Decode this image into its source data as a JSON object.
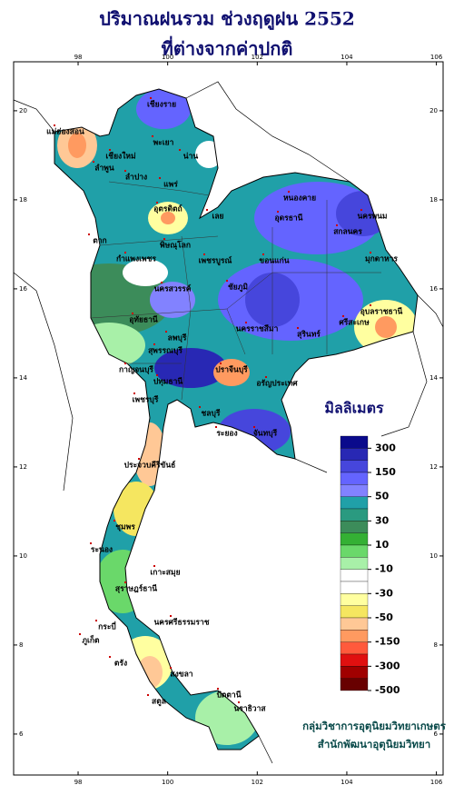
{
  "map": {
    "title": "ปริมาณฝนรวม ช่วงฤดูฝน 2552",
    "subtitle": "ที่ต่างจากค่าปกติ",
    "xlim": [
      96.56,
      106.15
    ],
    "ylim": [
      5.08,
      21.1
    ],
    "lon_ticks": [
      98,
      100,
      102,
      104,
      106
    ],
    "lat_ticks": [
      6,
      8,
      10,
      12,
      14,
      16,
      18,
      20
    ],
    "legend_title": "มิลลิเมตร",
    "legend_labels": [
      300,
      150,
      50,
      30,
      10,
      -10,
      -30,
      -50,
      -150,
      -300,
      -500
    ],
    "legend_colors": [
      "#0a0a8c",
      "#2828b4",
      "#4646dc",
      "#6464ff",
      "#8282ff",
      "#20a0a8",
      "#2a9a80",
      "#3c8c5a",
      "#34b034",
      "#6ad86a",
      "#a8f0a8",
      "#ffffff",
      "#ffffff",
      "#ffffa0",
      "#f5e660",
      "#ffc896",
      "#ff9a60",
      "#ff5a3c",
      "#e01010",
      "#a00000",
      "#680000"
    ],
    "places": [
      "เชียงราย",
      "แม่ฮ่องสอน",
      "เชียงใหม่",
      "ลำพูน",
      "ลำปาง",
      "พะเยา",
      "น่าน",
      "แพร่",
      "ตาก",
      "อุตรดิตถ์",
      "พิษณุโลก",
      "กำแพงเพชร",
      "เพชรบูรณ์",
      "เลย",
      "หนองคาย",
      "อุดรธานี",
      "นครพนม",
      "สกลนคร",
      "มุกดาหาร",
      "ขอนแก่น",
      "ชัยภูมิ",
      "นครสวรรค์",
      "อุทัยธานี",
      "ลพบุรี",
      "สุพรรณบุรี",
      "กาญจนบุรี",
      "ปทุมธานี",
      "นครราชสีมา",
      "สุรินทร์",
      "อุบลราชธานี",
      "ศรีสะเกษ",
      "ปราจีนบุรี",
      "อรัญประเทศ",
      "ชลบุรี",
      "ระยอง",
      "จันทบุรี",
      "เพชรบุรี",
      "ประจวบคีรีขันธ์",
      "ชุมพร",
      "ระนอง",
      "สุราษฎร์ธานี",
      "เกาะสมุย",
      "ภูเก็ต",
      "กระบี่",
      "นครศรีธรรมราช",
      "ตรัง",
      "สงขลา",
      "สตูล",
      "ปัตตานี",
      "นราธิวาส"
    ],
    "credit_1": "กลุ่มวิชาการอุตุนิยมวิทยาเกษตร",
    "credit_2": "สำนักพัฒนาอุตุนิยมวิทยา"
  }
}
